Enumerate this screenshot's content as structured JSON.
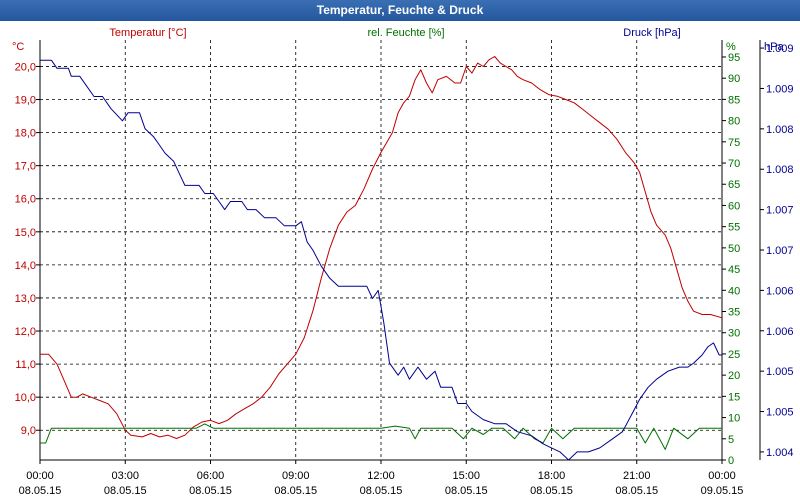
{
  "chart_data": {
    "type": "line",
    "title": "Temperatur, Feuchte & Druck",
    "colors": {
      "temperature": "#c00000",
      "humidity": "#007000",
      "pressure": "#000090",
      "title_bar": "#2d63a8"
    },
    "x_ticks": [
      {
        "time": "00:00",
        "date": "08.05.15"
      },
      {
        "time": "03:00",
        "date": "08.05.15"
      },
      {
        "time": "06:00",
        "date": "08.05.15"
      },
      {
        "time": "09:00",
        "date": "08.05.15"
      },
      {
        "time": "12:00",
        "date": "08.05.15"
      },
      {
        "time": "15:00",
        "date": "08.05.15"
      },
      {
        "time": "18:00",
        "date": "08.05.15"
      },
      {
        "time": "21:00",
        "date": "08.05.15"
      },
      {
        "time": "00:00",
        "date": "09.05.15"
      }
    ],
    "xlim_hours": [
      0,
      24
    ],
    "axes": {
      "temperature": {
        "label": "Temperatur [°C]",
        "unit": "°C",
        "ylim": [
          8.1,
          20.8
        ],
        "ticks": [
          "9,0",
          "10,0",
          "11,0",
          "12,0",
          "13,0",
          "14,0",
          "15,0",
          "16,0",
          "17,0",
          "18,0",
          "19,0",
          "20,0"
        ]
      },
      "humidity": {
        "label": "rel. Feuchte [%]",
        "unit": "%",
        "ylim": [
          0,
          99
        ],
        "ticks": [
          "0",
          "5",
          "10",
          "15",
          "20",
          "25",
          "30",
          "35",
          "40",
          "45",
          "50",
          "55",
          "60",
          "65",
          "70",
          "75",
          "80",
          "85",
          "90",
          "95"
        ]
      },
      "pressure": {
        "label": "Druck [hPa]",
        "unit": "hPa",
        "ylim": [
          1004.4,
          1009.6
        ],
        "ticks": [
          "1.004",
          "1.005",
          "1.005",
          "1.006",
          "1.006",
          "1.007",
          "1.007",
          "1.008",
          "1.008",
          "1.009",
          "1.009"
        ]
      }
    },
    "series": [
      {
        "name": "Temperatur",
        "axis": "temperature",
        "points": [
          [
            0,
            11.3
          ],
          [
            0.3,
            11.3
          ],
          [
            0.6,
            11.0
          ],
          [
            0.9,
            10.4
          ],
          [
            1.1,
            10.0
          ],
          [
            1.3,
            10.0
          ],
          [
            1.5,
            10.1
          ],
          [
            1.8,
            10.0
          ],
          [
            2.1,
            9.9
          ],
          [
            2.4,
            9.8
          ],
          [
            2.7,
            9.5
          ],
          [
            3.0,
            9.0
          ],
          [
            3.2,
            8.85
          ],
          [
            3.6,
            8.8
          ],
          [
            3.9,
            8.9
          ],
          [
            4.2,
            8.8
          ],
          [
            4.5,
            8.85
          ],
          [
            4.8,
            8.75
          ],
          [
            5.1,
            8.85
          ],
          [
            5.4,
            9.1
          ],
          [
            5.7,
            9.25
          ],
          [
            6.0,
            9.3
          ],
          [
            6.3,
            9.2
          ],
          [
            6.6,
            9.3
          ],
          [
            6.9,
            9.5
          ],
          [
            7.2,
            9.65
          ],
          [
            7.5,
            9.8
          ],
          [
            7.8,
            10.0
          ],
          [
            8.1,
            10.3
          ],
          [
            8.4,
            10.7
          ],
          [
            8.7,
            11.0
          ],
          [
            9.0,
            11.3
          ],
          [
            9.3,
            11.8
          ],
          [
            9.6,
            12.6
          ],
          [
            9.9,
            13.6
          ],
          [
            10.2,
            14.5
          ],
          [
            10.5,
            15.2
          ],
          [
            10.8,
            15.6
          ],
          [
            11.1,
            15.8
          ],
          [
            11.4,
            16.3
          ],
          [
            11.7,
            16.9
          ],
          [
            12.0,
            17.4
          ],
          [
            12.2,
            17.7
          ],
          [
            12.4,
            18.0
          ],
          [
            12.6,
            18.6
          ],
          [
            12.8,
            18.9
          ],
          [
            13.0,
            19.1
          ],
          [
            13.2,
            19.6
          ],
          [
            13.4,
            19.9
          ],
          [
            13.6,
            19.5
          ],
          [
            13.8,
            19.2
          ],
          [
            14.0,
            19.6
          ],
          [
            14.3,
            19.7
          ],
          [
            14.6,
            19.5
          ],
          [
            14.8,
            19.5
          ],
          [
            15.0,
            20.0
          ],
          [
            15.2,
            19.8
          ],
          [
            15.4,
            20.1
          ],
          [
            15.6,
            20.0
          ],
          [
            15.8,
            20.2
          ],
          [
            16.0,
            20.3
          ],
          [
            16.2,
            20.1
          ],
          [
            16.4,
            20.0
          ],
          [
            16.6,
            19.9
          ],
          [
            16.8,
            19.7
          ],
          [
            17.0,
            19.6
          ],
          [
            17.3,
            19.5
          ],
          [
            17.6,
            19.3
          ],
          [
            17.9,
            19.15
          ],
          [
            18.2,
            19.1
          ],
          [
            18.5,
            19.0
          ],
          [
            18.8,
            18.9
          ],
          [
            19.1,
            18.7
          ],
          [
            19.4,
            18.5
          ],
          [
            19.7,
            18.3
          ],
          [
            20.0,
            18.1
          ],
          [
            20.3,
            17.8
          ],
          [
            20.6,
            17.4
          ],
          [
            20.9,
            17.1
          ],
          [
            21.1,
            16.8
          ],
          [
            21.3,
            16.2
          ],
          [
            21.5,
            15.6
          ],
          [
            21.7,
            15.2
          ],
          [
            22.0,
            14.9
          ],
          [
            22.2,
            14.5
          ],
          [
            22.4,
            13.9
          ],
          [
            22.6,
            13.3
          ],
          [
            22.8,
            12.9
          ],
          [
            23.0,
            12.6
          ],
          [
            23.3,
            12.5
          ],
          [
            23.6,
            12.5
          ],
          [
            24.0,
            12.4
          ]
        ]
      },
      {
        "name": "rel. Feuchte",
        "axis": "humidity",
        "points": [
          [
            0,
            4
          ],
          [
            0.2,
            4
          ],
          [
            0.4,
            7.5
          ],
          [
            1.5,
            7.5
          ],
          [
            3,
            7.5
          ],
          [
            4.5,
            7.5
          ],
          [
            5.5,
            7.5
          ],
          [
            5.8,
            8.5
          ],
          [
            6.1,
            7.5
          ],
          [
            8,
            7.5
          ],
          [
            10,
            7.5
          ],
          [
            12,
            7.5
          ],
          [
            12.5,
            8
          ],
          [
            13.0,
            7.5
          ],
          [
            13.2,
            5
          ],
          [
            13.4,
            7.5
          ],
          [
            14.5,
            7.5
          ],
          [
            14.9,
            5
          ],
          [
            15.2,
            7.5
          ],
          [
            15.6,
            6
          ],
          [
            15.9,
            7.5
          ],
          [
            16.3,
            7.5
          ],
          [
            16.7,
            5
          ],
          [
            17.0,
            7.5
          ],
          [
            17.4,
            5
          ],
          [
            17.7,
            4
          ],
          [
            18.0,
            7.5
          ],
          [
            18.4,
            5
          ],
          [
            18.8,
            7.5
          ],
          [
            19.5,
            7.5
          ],
          [
            20.5,
            7.5
          ],
          [
            21.0,
            7.5
          ],
          [
            21.3,
            4
          ],
          [
            21.6,
            7.5
          ],
          [
            22.0,
            2.5
          ],
          [
            22.3,
            7.5
          ],
          [
            22.8,
            5
          ],
          [
            23.2,
            7.5
          ],
          [
            24.0,
            7.5
          ]
        ]
      },
      {
        "name": "Druck",
        "axis": "pressure",
        "points": [
          [
            0,
            1009.35
          ],
          [
            0.4,
            1009.35
          ],
          [
            0.6,
            1009.25
          ],
          [
            1.0,
            1009.25
          ],
          [
            1.1,
            1009.15
          ],
          [
            1.4,
            1009.15
          ],
          [
            1.6,
            1009.05
          ],
          [
            1.9,
            1008.9
          ],
          [
            2.2,
            1008.9
          ],
          [
            2.5,
            1008.75
          ],
          [
            2.9,
            1008.6
          ],
          [
            3.1,
            1008.7
          ],
          [
            3.5,
            1008.7
          ],
          [
            3.7,
            1008.5
          ],
          [
            4.0,
            1008.4
          ],
          [
            4.2,
            1008.3
          ],
          [
            4.4,
            1008.2
          ],
          [
            4.7,
            1008.1
          ],
          [
            4.9,
            1007.95
          ],
          [
            5.1,
            1007.8
          ],
          [
            5.6,
            1007.8
          ],
          [
            5.8,
            1007.7
          ],
          [
            6.1,
            1007.7
          ],
          [
            6.3,
            1007.6
          ],
          [
            6.5,
            1007.5
          ],
          [
            6.7,
            1007.6
          ],
          [
            7.1,
            1007.6
          ],
          [
            7.3,
            1007.5
          ],
          [
            7.6,
            1007.5
          ],
          [
            7.9,
            1007.4
          ],
          [
            8.3,
            1007.4
          ],
          [
            8.6,
            1007.3
          ],
          [
            9.0,
            1007.3
          ],
          [
            9.2,
            1007.35
          ],
          [
            9.4,
            1007.1
          ],
          [
            9.6,
            1007.0
          ],
          [
            9.9,
            1006.8
          ],
          [
            10.2,
            1006.65
          ],
          [
            10.5,
            1006.55
          ],
          [
            11.5,
            1006.55
          ],
          [
            11.7,
            1006.4
          ],
          [
            11.9,
            1006.5
          ],
          [
            12.1,
            1006.1
          ],
          [
            12.3,
            1005.6
          ],
          [
            12.6,
            1005.45
          ],
          [
            12.8,
            1005.55
          ],
          [
            13.0,
            1005.4
          ],
          [
            13.3,
            1005.55
          ],
          [
            13.6,
            1005.4
          ],
          [
            13.9,
            1005.5
          ],
          [
            14.1,
            1005.3
          ],
          [
            14.5,
            1005.3
          ],
          [
            14.7,
            1005.1
          ],
          [
            15.0,
            1005.1
          ],
          [
            15.2,
            1005.0
          ],
          [
            15.6,
            1004.9
          ],
          [
            16.0,
            1004.85
          ],
          [
            16.4,
            1004.85
          ],
          [
            16.8,
            1004.75
          ],
          [
            17.3,
            1004.7
          ],
          [
            17.7,
            1004.6
          ],
          [
            18.0,
            1004.55
          ],
          [
            18.3,
            1004.5
          ],
          [
            18.6,
            1004.4
          ],
          [
            18.9,
            1004.5
          ],
          [
            19.3,
            1004.5
          ],
          [
            19.7,
            1004.55
          ],
          [
            20.1,
            1004.65
          ],
          [
            20.5,
            1004.75
          ],
          [
            20.8,
            1004.95
          ],
          [
            21.1,
            1005.15
          ],
          [
            21.4,
            1005.3
          ],
          [
            21.7,
            1005.4
          ],
          [
            22.1,
            1005.5
          ],
          [
            22.5,
            1005.55
          ],
          [
            22.8,
            1005.55
          ],
          [
            23.0,
            1005.6
          ],
          [
            23.3,
            1005.7
          ],
          [
            23.5,
            1005.8
          ],
          [
            23.7,
            1005.85
          ],
          [
            23.9,
            1005.7
          ],
          [
            24.0,
            1005.7
          ]
        ]
      }
    ]
  }
}
